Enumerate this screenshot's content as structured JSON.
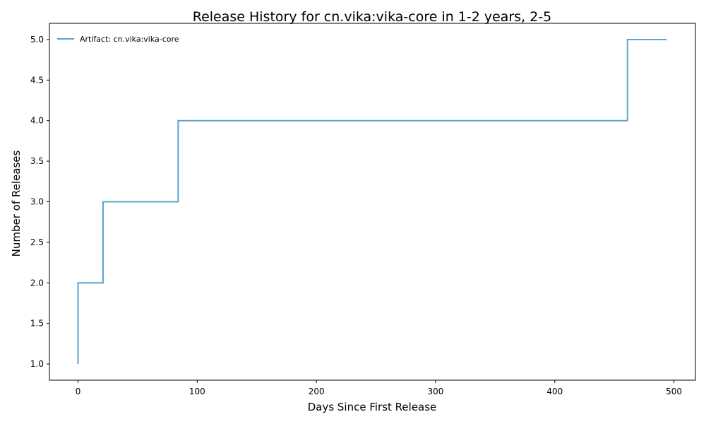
{
  "chart_data": {
    "type": "line",
    "step": true,
    "title": "Release History for cn.vika:vika-core in 1-2 years, 2-5",
    "xlabel": "Days Since First Release",
    "ylabel": "Number of Releases",
    "xlim": [
      -24,
      518
    ],
    "ylim": [
      0.8,
      5.2
    ],
    "xticks": [
      0,
      100,
      200,
      300,
      400,
      500
    ],
    "yticks": [
      1.0,
      1.5,
      2.0,
      2.5,
      3.0,
      3.5,
      4.0,
      4.5,
      5.0
    ],
    "xtick_labels": [
      "0",
      "100",
      "200",
      "300",
      "400",
      "500"
    ],
    "ytick_labels": [
      "1.0",
      "1.5",
      "2.0",
      "2.5",
      "3.0",
      "3.5",
      "4.0",
      "4.5",
      "5.0"
    ],
    "legend_position": "top-left",
    "grid": false,
    "series": [
      {
        "name": "Artifact: cn.vika:vika-core",
        "color": "#5ba3d0",
        "x": [
          0,
          0,
          21,
          84,
          461,
          494
        ],
        "y": [
          1,
          2,
          3,
          4,
          5,
          5
        ]
      }
    ]
  }
}
